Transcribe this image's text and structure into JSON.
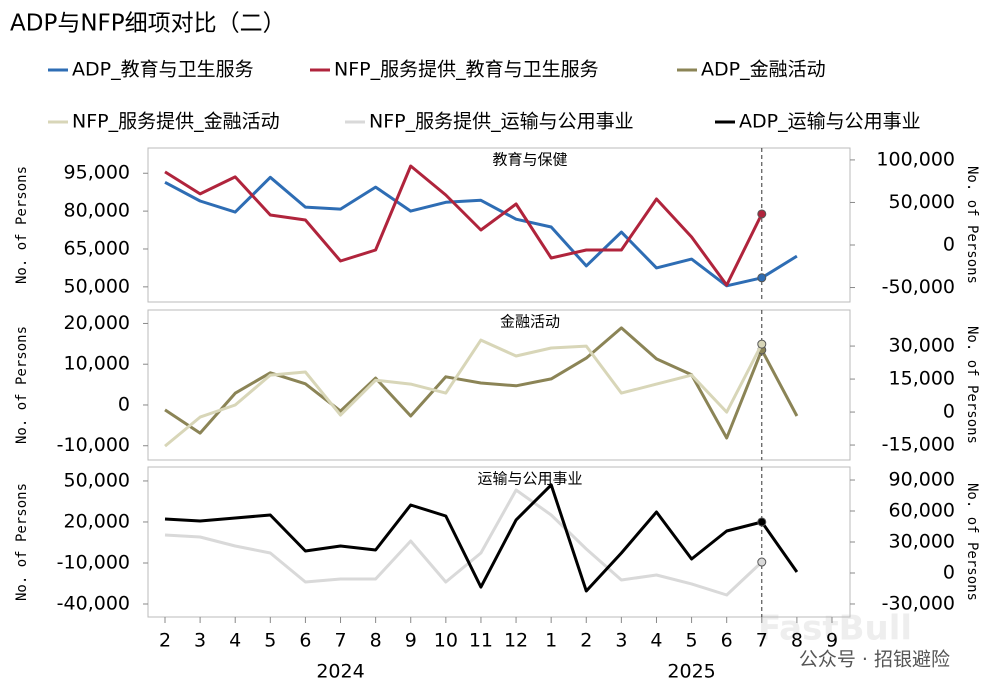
{
  "title": "ADP与NFP细项对比（二）",
  "source_note": "公众号 · 招银避险",
  "watermark": "FastBull",
  "chart_data": [
    {
      "type": "line",
      "subtitle": "教育与保健",
      "ylabel": "No. of Persons",
      "y2label": "No. of Persons",
      "ylim": [
        44000,
        105000
      ],
      "yticks": [
        {
          "value": 50000,
          "label": "50,000"
        },
        {
          "value": 65000,
          "label": "65,000"
        },
        {
          "value": 80000,
          "label": "80,000"
        },
        {
          "value": 95000,
          "label": "95,000"
        }
      ],
      "y2lim": [
        -67000,
        114000
      ],
      "y2ticks": [
        {
          "value": -50000,
          "label": "-50,000"
        },
        0,
        {
          "value": 50000,
          "label": "50,000"
        },
        {
          "value": 100000,
          "label": "100,000"
        }
      ],
      "series": [
        {
          "name": "ADP_教育与卫生服务",
          "color": "#2e6db4",
          "axis": "y",
          "values": [
            91400,
            84000,
            79600,
            93400,
            81600,
            80800,
            89500,
            80000,
            83500,
            84300,
            76800,
            73700,
            58300,
            71700,
            57500,
            61000,
            50400,
            53600,
            62200,
            null
          ]
        },
        {
          "name": "NFP_服务提供_教育与卫生服务",
          "color": "#b0243c",
          "axis": "y2",
          "values": [
            85900,
            60000,
            80000,
            35300,
            29400,
            -18800,
            -5900,
            92900,
            58800,
            17600,
            48200,
            -15300,
            -5900,
            -5900,
            54100,
            9400,
            -47100,
            36500,
            null,
            null
          ]
        }
      ]
    },
    {
      "type": "line",
      "subtitle": "金融活动",
      "ylabel": "No. of Persons",
      "y2label": "No. of Persons",
      "ylim": [
        -13500,
        23300
      ],
      "yticks": [
        {
          "value": -10000,
          "label": "-10,000"
        },
        0,
        {
          "value": 10000,
          "label": "10,000"
        },
        {
          "value": 20000,
          "label": "20,000"
        }
      ],
      "y2lim": [
        -21800,
        46400
      ],
      "y2ticks": [
        {
          "value": -15000,
          "label": "-15,000"
        },
        0,
        {
          "value": 15000,
          "label": "15,000"
        },
        {
          "value": 30000,
          "label": "30,000"
        }
      ],
      "series": [
        {
          "name": "ADP_金融活动",
          "color": "#8b8456",
          "axis": "y",
          "values": [
            -1200,
            -6900,
            2900,
            7900,
            5200,
            -1500,
            6600,
            -2700,
            6900,
            5400,
            4700,
            6400,
            11500,
            18900,
            11300,
            7400,
            -8100,
            13500,
            -2700,
            null
          ]
        },
        {
          "name": "NFP_服务提供_金融活动",
          "color": "#d8d6b8",
          "axis": "y2",
          "values": [
            -15500,
            -2300,
            3200,
            16800,
            18200,
            -1400,
            14500,
            12700,
            8600,
            32700,
            25500,
            29100,
            30000,
            8600,
            12700,
            16800,
            0,
            30900,
            null,
            null
          ]
        }
      ]
    },
    {
      "type": "line",
      "subtitle": "运输与公用事业",
      "ylabel": "No. of Persons",
      "y2label": "No. of Persons",
      "categories": [
        "2",
        "3",
        "4",
        "5",
        "6",
        "7",
        "8",
        "9",
        "10",
        "11",
        "12",
        "1",
        "2",
        "3",
        "4",
        "5",
        "6",
        "7",
        "8",
        "9"
      ],
      "year_groups": [
        {
          "label": "2024",
          "count": 11
        },
        {
          "label": "2025",
          "count": 9
        }
      ],
      "ylim": [
        -49500,
        60200
      ],
      "yticks": [
        {
          "value": -40000,
          "label": "-40,000"
        },
        {
          "value": -10000,
          "label": "-10,000"
        },
        {
          "value": 20000,
          "label": "20,000"
        },
        {
          "value": 50000,
          "label": "50,000"
        }
      ],
      "y2lim": [
        -42600,
        102600
      ],
      "y2ticks": [
        {
          "value": -30000,
          "label": "-30,000"
        },
        0,
        {
          "value": 30000,
          "label": "30,000"
        },
        {
          "value": 60000,
          "label": "60,000"
        },
        {
          "value": 90000,
          "label": "90,000"
        }
      ],
      "series": [
        {
          "name": "NFP_服务提供_运输与公用事业",
          "color": "#d9d9d9",
          "axis": "y2",
          "values": [
            36800,
            34800,
            26100,
            19400,
            -8700,
            -5800,
            -5800,
            31000,
            -8700,
            19400,
            80300,
            56100,
            23200,
            -6800,
            -1900,
            -10600,
            -21300,
            10600,
            null,
            null
          ]
        },
        {
          "name": "ADP_运输与公用事业",
          "color": "#000000",
          "axis": "y",
          "values": [
            22200,
            20700,
            22900,
            25100,
            -1200,
            2400,
            -500,
            32400,
            24400,
            -27600,
            21500,
            47100,
            -30500,
            -2700,
            27300,
            -7100,
            13400,
            20000,
            -16600,
            null
          ]
        }
      ]
    }
  ]
}
